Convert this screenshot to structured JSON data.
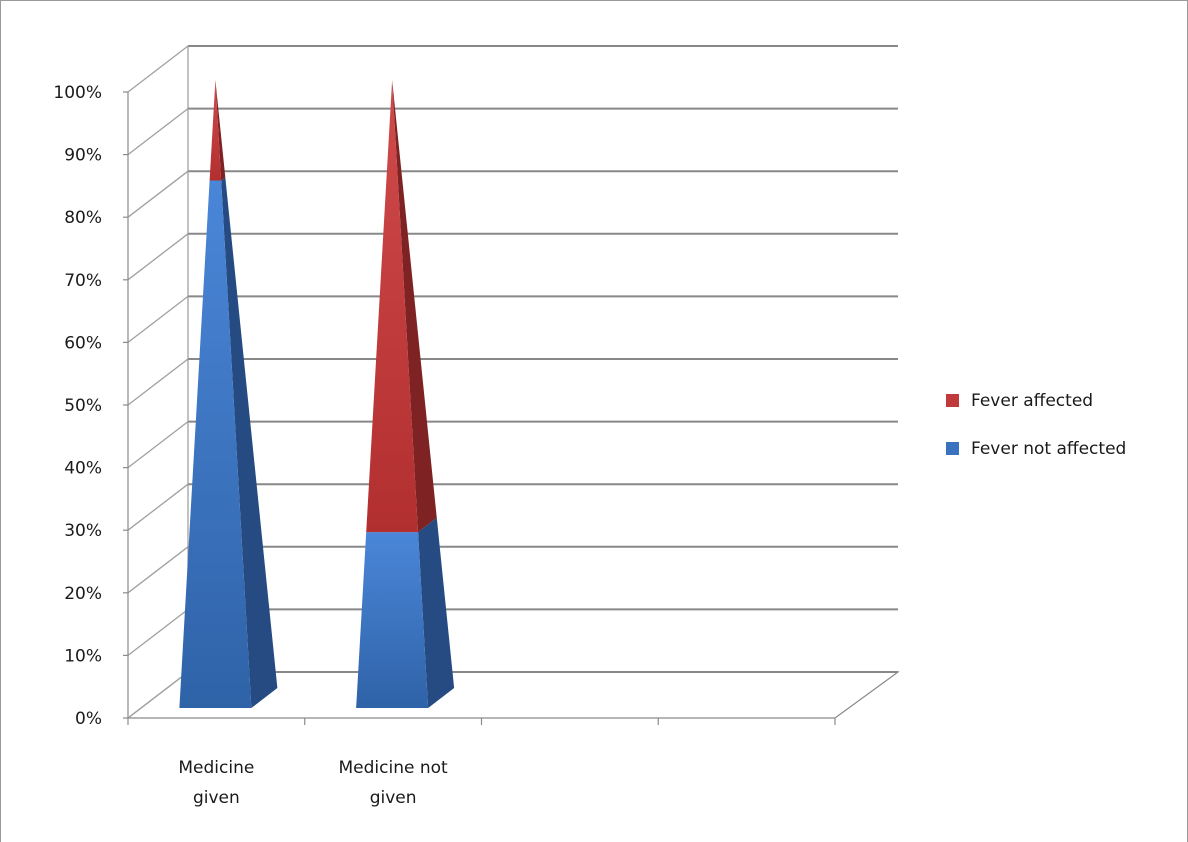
{
  "chart_data": {
    "type": "bar",
    "subtype": "100% stacked 3-D pyramid",
    "categories": [
      [
        "Medicine",
        "given"
      ],
      [
        "Medicine not",
        "given"
      ]
    ],
    "series": [
      {
        "name": "Fever not affected",
        "values": [
          84,
          28
        ],
        "color": "#3b72c0"
      },
      {
        "name": "Fever affected",
        "values": [
          16,
          72
        ],
        "color": "#c0393b"
      }
    ],
    "ylim": [
      0,
      100
    ],
    "yticks": [
      "0%",
      "10%",
      "20%",
      "30%",
      "40%",
      "50%",
      "60%",
      "70%",
      "80%",
      "90%",
      "100%"
    ],
    "grid": true,
    "legend": "right",
    "title": "",
    "xlabel": "",
    "ylabel": ""
  }
}
